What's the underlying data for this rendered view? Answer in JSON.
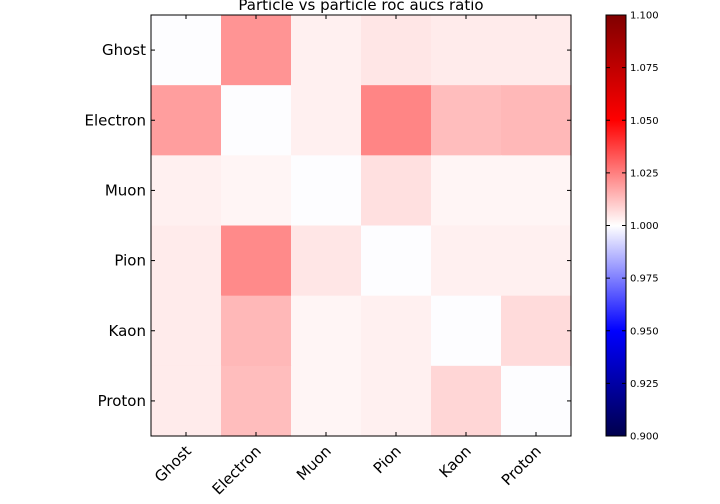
{
  "chart_data": {
    "type": "heatmap",
    "title": "Particle vs particle roc aucs ratio",
    "rows": [
      "Ghost",
      "Electron",
      "Muon",
      "Pion",
      "Kaon",
      "Proton"
    ],
    "columns": [
      "Ghost",
      "Electron",
      "Muon",
      "Pion",
      "Kaon",
      "Proton"
    ],
    "values": [
      [
        1.0,
        1.021,
        1.003,
        1.005,
        1.004,
        1.004
      ],
      [
        1.019,
        1.0,
        1.003,
        1.024,
        1.013,
        1.014
      ],
      [
        1.003,
        1.002,
        1.0,
        1.006,
        1.002,
        1.002
      ],
      [
        1.004,
        1.023,
        1.005,
        1.0,
        1.003,
        1.003
      ],
      [
        1.004,
        1.014,
        1.002,
        1.003,
        1.0,
        1.007
      ],
      [
        1.004,
        1.013,
        1.002,
        1.003,
        1.008,
        1.0
      ]
    ],
    "colorbar": {
      "min": 0.9,
      "max": 1.1,
      "colormap": "seismic",
      "ticks": [
        "0.900",
        "0.925",
        "0.950",
        "0.975",
        "1.000",
        "1.025",
        "1.050",
        "1.075",
        "1.100"
      ]
    }
  }
}
